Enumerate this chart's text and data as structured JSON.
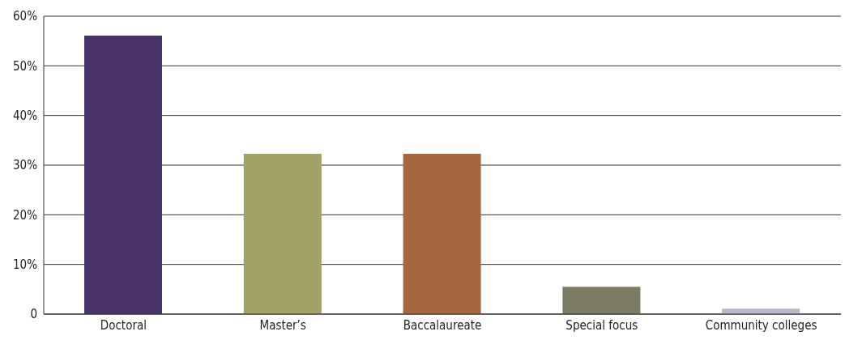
{
  "chart_data": {
    "type": "bar",
    "categories": [
      "Doctoral",
      "Master’s",
      "Baccalaureate",
      "Special focus",
      "Community colleges"
    ],
    "values": [
      56.1,
      32.3,
      32.3,
      5.5,
      1.1
    ],
    "colors": [
      "#4a3369",
      "#a3a068",
      "#a66640",
      "#7b7c63",
      "#c0b3cc"
    ],
    "ylim": [
      0,
      60
    ],
    "yticks": [
      {
        "value": 0,
        "label": "0"
      },
      {
        "value": 10,
        "label": "10%"
      },
      {
        "value": 20,
        "label": "20%"
      },
      {
        "value": 30,
        "label": "30%"
      },
      {
        "value": 40,
        "label": "40%"
      },
      {
        "value": 50,
        "label": "50%"
      },
      {
        "value": 60,
        "label": "60%"
      }
    ],
    "grid": "y"
  }
}
